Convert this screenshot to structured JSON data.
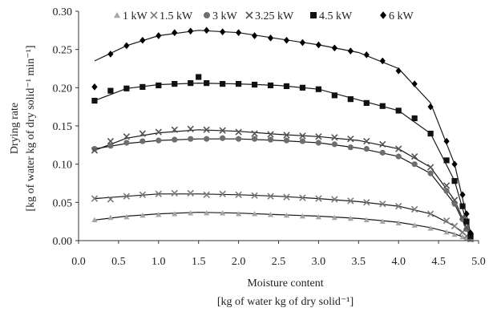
{
  "chart_data": {
    "type": "scatter",
    "xlabel_line1": "Moisture content",
    "xlabel_line2": "[kg of water kg of dry solid⁻¹]",
    "ylabel_line1": "Drying rate",
    "ylabel_line2": "[kg of water kg of dry solid⁻¹ min⁻¹]",
    "xlim": [
      0.0,
      5.0
    ],
    "ylim": [
      0.0,
      0.3
    ],
    "x_ticks": [
      "0.0",
      "0.5",
      "1.0",
      "1.5",
      "2.0",
      "2.5",
      "3.0",
      "3.5",
      "4.0",
      "4.5",
      "5.0"
    ],
    "y_ticks": [
      "0.00",
      "0.05",
      "0.10",
      "0.15",
      "0.20",
      "0.25",
      "0.30"
    ],
    "legend_position": "top",
    "series": [
      {
        "name": "1 kW",
        "marker": "triangle",
        "color": "#a6a6a6",
        "x": [
          0.2,
          0.4,
          0.6,
          0.8,
          1.0,
          1.2,
          1.4,
          1.6,
          1.8,
          2.0,
          2.2,
          2.4,
          2.6,
          2.8,
          3.0,
          3.2,
          3.4,
          3.6,
          3.8,
          4.0,
          4.2,
          4.4,
          4.6,
          4.7,
          4.8,
          4.85,
          4.9
        ],
        "y": [
          0.027,
          0.03,
          0.031,
          0.033,
          0.034,
          0.035,
          0.036,
          0.036,
          0.036,
          0.035,
          0.035,
          0.034,
          0.033,
          0.032,
          0.031,
          0.03,
          0.029,
          0.027,
          0.025,
          0.023,
          0.02,
          0.016,
          0.011,
          0.008,
          0.005,
          0.003,
          0.001
        ],
        "fit": [
          [
            0.2,
            0.027
          ],
          [
            0.6,
            0.032
          ],
          [
            1.0,
            0.035
          ],
          [
            1.5,
            0.037
          ],
          [
            2.0,
            0.036
          ],
          [
            2.5,
            0.034
          ],
          [
            3.0,
            0.032
          ],
          [
            3.5,
            0.029
          ],
          [
            4.0,
            0.024
          ],
          [
            4.4,
            0.017
          ],
          [
            4.7,
            0.009
          ],
          [
            4.9,
            0.001
          ]
        ]
      },
      {
        "name": "1.5 kW",
        "marker": "cross",
        "color": "#7a7a7a",
        "x": [
          0.2,
          0.4,
          0.6,
          0.8,
          1.0,
          1.2,
          1.4,
          1.6,
          1.8,
          2.0,
          2.2,
          2.4,
          2.6,
          2.8,
          3.0,
          3.2,
          3.4,
          3.6,
          3.8,
          4.0,
          4.2,
          4.4,
          4.6,
          4.7,
          4.8,
          4.85,
          4.9
        ],
        "y": [
          0.055,
          0.054,
          0.058,
          0.06,
          0.061,
          0.062,
          0.062,
          0.06,
          0.061,
          0.06,
          0.059,
          0.058,
          0.057,
          0.056,
          0.055,
          0.054,
          0.052,
          0.05,
          0.048,
          0.045,
          0.041,
          0.035,
          0.026,
          0.019,
          0.011,
          0.006,
          0.002
        ],
        "fit": [
          [
            0.2,
            0.055
          ],
          [
            0.6,
            0.058
          ],
          [
            1.0,
            0.061
          ],
          [
            1.5,
            0.061
          ],
          [
            2.0,
            0.06
          ],
          [
            2.5,
            0.058
          ],
          [
            3.0,
            0.055
          ],
          [
            3.5,
            0.051
          ],
          [
            4.0,
            0.045
          ],
          [
            4.4,
            0.035
          ],
          [
            4.7,
            0.019
          ],
          [
            4.9,
            0.002
          ]
        ]
      },
      {
        "name": "3 kW",
        "marker": "circle",
        "color": "#6e6e6e",
        "x": [
          0.2,
          0.4,
          0.6,
          0.8,
          1.0,
          1.2,
          1.4,
          1.6,
          1.8,
          2.0,
          2.2,
          2.4,
          2.6,
          2.8,
          3.0,
          3.2,
          3.4,
          3.6,
          3.8,
          4.0,
          4.2,
          4.4,
          4.6,
          4.7,
          4.8,
          4.85,
          4.9
        ],
        "y": [
          0.12,
          0.124,
          0.128,
          0.13,
          0.131,
          0.132,
          0.133,
          0.133,
          0.134,
          0.133,
          0.133,
          0.132,
          0.131,
          0.13,
          0.128,
          0.126,
          0.122,
          0.12,
          0.115,
          0.11,
          0.1,
          0.088,
          0.065,
          0.048,
          0.028,
          0.015,
          0.004
        ],
        "fit": [
          [
            0.2,
            0.12
          ],
          [
            0.6,
            0.127
          ],
          [
            1.0,
            0.131
          ],
          [
            1.5,
            0.133
          ],
          [
            2.0,
            0.133
          ],
          [
            2.5,
            0.131
          ],
          [
            3.0,
            0.128
          ],
          [
            3.5,
            0.121
          ],
          [
            4.0,
            0.11
          ],
          [
            4.4,
            0.088
          ],
          [
            4.7,
            0.048
          ],
          [
            4.9,
            0.004
          ]
        ]
      },
      {
        "name": "3.25 kW",
        "marker": "cross",
        "color": "#555555",
        "x": [
          0.2,
          0.4,
          0.6,
          0.8,
          1.0,
          1.2,
          1.4,
          1.6,
          1.8,
          2.0,
          2.2,
          2.4,
          2.6,
          2.8,
          3.0,
          3.2,
          3.4,
          3.6,
          3.8,
          4.0,
          4.2,
          4.4,
          4.6,
          4.7,
          4.8,
          4.85,
          4.9
        ],
        "y": [
          0.118,
          0.13,
          0.136,
          0.14,
          0.142,
          0.145,
          0.146,
          0.145,
          0.144,
          0.142,
          0.14,
          0.139,
          0.138,
          0.137,
          0.136,
          0.135,
          0.133,
          0.13,
          0.126,
          0.12,
          0.11,
          0.096,
          0.072,
          0.053,
          0.031,
          0.017,
          0.005
        ],
        "fit": [
          [
            0.2,
            0.118
          ],
          [
            0.6,
            0.134
          ],
          [
            1.0,
            0.141
          ],
          [
            1.5,
            0.145
          ],
          [
            2.0,
            0.143
          ],
          [
            2.5,
            0.139
          ],
          [
            3.0,
            0.136
          ],
          [
            3.5,
            0.131
          ],
          [
            4.0,
            0.12
          ],
          [
            4.4,
            0.096
          ],
          [
            4.7,
            0.053
          ],
          [
            4.9,
            0.005
          ]
        ]
      },
      {
        "name": "4.5 kW",
        "marker": "square",
        "color": "#111111",
        "x": [
          0.2,
          0.4,
          0.6,
          0.8,
          1.0,
          1.2,
          1.4,
          1.5,
          1.6,
          1.8,
          2.0,
          2.2,
          2.4,
          2.6,
          2.8,
          3.0,
          3.2,
          3.4,
          3.6,
          3.8,
          4.0,
          4.2,
          4.4,
          4.6,
          4.7,
          4.8,
          4.85,
          4.9
        ],
        "y": [
          0.183,
          0.196,
          0.199,
          0.201,
          0.203,
          0.205,
          0.206,
          0.214,
          0.206,
          0.205,
          0.205,
          0.204,
          0.203,
          0.202,
          0.2,
          0.198,
          0.19,
          0.185,
          0.18,
          0.176,
          0.17,
          0.16,
          0.14,
          0.105,
          0.078,
          0.045,
          0.025,
          0.006
        ],
        "fit": [
          [
            0.2,
            0.183
          ],
          [
            0.6,
            0.199
          ],
          [
            1.0,
            0.204
          ],
          [
            1.5,
            0.206
          ],
          [
            2.0,
            0.205
          ],
          [
            2.5,
            0.203
          ],
          [
            3.0,
            0.198
          ],
          [
            3.5,
            0.184
          ],
          [
            4.0,
            0.17
          ],
          [
            4.4,
            0.14
          ],
          [
            4.7,
            0.078
          ],
          [
            4.9,
            0.006
          ]
        ]
      },
      {
        "name": "6 kW",
        "marker": "diamond",
        "color": "#000000",
        "x": [
          0.2,
          0.4,
          0.6,
          0.8,
          1.0,
          1.2,
          1.4,
          1.6,
          1.8,
          2.0,
          2.2,
          2.4,
          2.6,
          2.8,
          3.0,
          3.2,
          3.4,
          3.6,
          3.8,
          4.0,
          4.2,
          4.4,
          4.6,
          4.7,
          4.8,
          4.85,
          4.9
        ],
        "y": [
          0.201,
          0.244,
          0.255,
          0.262,
          0.268,
          0.272,
          0.274,
          0.275,
          0.273,
          0.272,
          0.268,
          0.265,
          0.262,
          0.259,
          0.256,
          0.252,
          0.248,
          0.243,
          0.235,
          0.222,
          0.205,
          0.175,
          0.13,
          0.1,
          0.06,
          0.035,
          0.01
        ],
        "fit": [
          [
            0.2,
            0.235
          ],
          [
            0.6,
            0.255
          ],
          [
            1.0,
            0.268
          ],
          [
            1.5,
            0.275
          ],
          [
            2.0,
            0.272
          ],
          [
            2.5,
            0.264
          ],
          [
            3.0,
            0.256
          ],
          [
            3.5,
            0.246
          ],
          [
            4.0,
            0.225
          ],
          [
            4.4,
            0.18
          ],
          [
            4.7,
            0.1
          ],
          [
            4.9,
            0.01
          ]
        ]
      }
    ]
  }
}
